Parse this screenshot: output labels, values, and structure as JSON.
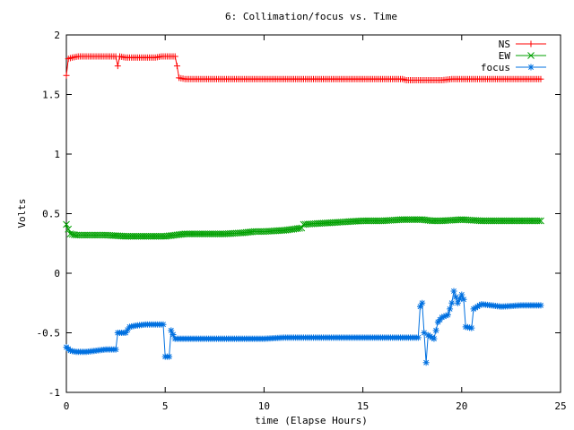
{
  "chart_data": {
    "type": "line",
    "title": "6: Collimation/focus vs. Time",
    "xlabel": "time (Elapse Hours)",
    "ylabel": "Volts",
    "xlim": [
      0,
      25
    ],
    "ylim": [
      -1,
      2
    ],
    "xticks": [
      0,
      5,
      10,
      15,
      20,
      25
    ],
    "yticks": [
      -1,
      -0.5,
      0,
      0.5,
      1,
      1.5,
      2
    ],
    "xtick_labels": [
      "0",
      "5",
      "10",
      "15",
      "20",
      "25"
    ],
    "ytick_labels": [
      "-1",
      "-0.5",
      "0",
      "0.5",
      "1",
      "1.5",
      "2"
    ],
    "grid": false,
    "legend_position": "top-right",
    "series": [
      {
        "name": "NS",
        "color": "#ff0000",
        "marker": "plus",
        "points": [
          [
            0,
            1.66
          ],
          [
            0.1,
            1.8
          ],
          [
            0.3,
            1.81
          ],
          [
            0.6,
            1.82
          ],
          [
            1,
            1.82
          ],
          [
            1.5,
            1.82
          ],
          [
            2,
            1.82
          ],
          [
            2.5,
            1.82
          ],
          [
            2.6,
            1.74
          ],
          [
            2.7,
            1.82
          ],
          [
            3,
            1.81
          ],
          [
            3.5,
            1.81
          ],
          [
            4,
            1.81
          ],
          [
            4.5,
            1.81
          ],
          [
            4.8,
            1.82
          ],
          [
            5.2,
            1.82
          ],
          [
            5.5,
            1.82
          ],
          [
            5.6,
            1.74
          ],
          [
            5.7,
            1.64
          ],
          [
            6,
            1.63
          ],
          [
            7,
            1.63
          ],
          [
            8,
            1.63
          ],
          [
            9,
            1.63
          ],
          [
            10,
            1.63
          ],
          [
            11,
            1.63
          ],
          [
            12,
            1.63
          ],
          [
            13,
            1.63
          ],
          [
            14,
            1.63
          ],
          [
            15,
            1.63
          ],
          [
            16,
            1.63
          ],
          [
            17,
            1.63
          ],
          [
            17.2,
            1.62
          ],
          [
            17.5,
            1.62
          ],
          [
            18,
            1.62
          ],
          [
            18.5,
            1.62
          ],
          [
            19,
            1.62
          ],
          [
            19.5,
            1.63
          ],
          [
            20,
            1.63
          ],
          [
            20.5,
            1.63
          ],
          [
            21,
            1.63
          ],
          [
            22,
            1.63
          ],
          [
            23,
            1.63
          ],
          [
            24,
            1.63
          ]
        ]
      },
      {
        "name": "EW",
        "color": "#00a000",
        "marker": "cross",
        "points": [
          [
            0,
            0.41
          ],
          [
            0.2,
            0.33
          ],
          [
            0.5,
            0.32
          ],
          [
            1,
            0.32
          ],
          [
            2,
            0.32
          ],
          [
            3,
            0.31
          ],
          [
            4,
            0.31
          ],
          [
            5,
            0.31
          ],
          [
            5.5,
            0.32
          ],
          [
            6,
            0.33
          ],
          [
            7,
            0.33
          ],
          [
            8,
            0.33
          ],
          [
            9,
            0.34
          ],
          [
            9.5,
            0.35
          ],
          [
            10,
            0.35
          ],
          [
            11,
            0.36
          ],
          [
            11.5,
            0.37
          ],
          [
            11.9,
            0.38
          ],
          [
            12,
            0.41
          ],
          [
            13,
            0.42
          ],
          [
            14,
            0.43
          ],
          [
            15,
            0.44
          ],
          [
            16,
            0.44
          ],
          [
            17,
            0.45
          ],
          [
            18,
            0.45
          ],
          [
            18.5,
            0.44
          ],
          [
            19,
            0.44
          ],
          [
            20,
            0.45
          ],
          [
            21,
            0.44
          ],
          [
            22,
            0.44
          ],
          [
            23,
            0.44
          ],
          [
            24,
            0.44
          ]
        ]
      },
      {
        "name": "focus",
        "color": "#0070e0",
        "marker": "star",
        "points": [
          [
            0,
            -0.62
          ],
          [
            0.2,
            -0.65
          ],
          [
            0.5,
            -0.66
          ],
          [
            1,
            -0.66
          ],
          [
            1.5,
            -0.65
          ],
          [
            2,
            -0.64
          ],
          [
            2.5,
            -0.64
          ],
          [
            2.6,
            -0.5
          ],
          [
            2.8,
            -0.5
          ],
          [
            3,
            -0.5
          ],
          [
            3.2,
            -0.45
          ],
          [
            3.5,
            -0.44
          ],
          [
            4,
            -0.43
          ],
          [
            4.5,
            -0.43
          ],
          [
            4.9,
            -0.43
          ],
          [
            5,
            -0.7
          ],
          [
            5.2,
            -0.7
          ],
          [
            5.3,
            -0.48
          ],
          [
            5.5,
            -0.55
          ],
          [
            6,
            -0.55
          ],
          [
            7,
            -0.55
          ],
          [
            8,
            -0.55
          ],
          [
            9,
            -0.55
          ],
          [
            10,
            -0.55
          ],
          [
            11,
            -0.54
          ],
          [
            12,
            -0.54
          ],
          [
            13,
            -0.54
          ],
          [
            14,
            -0.54
          ],
          [
            15,
            -0.54
          ],
          [
            16,
            -0.54
          ],
          [
            17,
            -0.54
          ],
          [
            17.8,
            -0.54
          ],
          [
            17.9,
            -0.28
          ],
          [
            18,
            -0.25
          ],
          [
            18.2,
            -0.75
          ],
          [
            18.3,
            -0.52
          ],
          [
            18.6,
            -0.55
          ],
          [
            18.8,
            -0.41
          ],
          [
            19,
            -0.37
          ],
          [
            19.3,
            -0.35
          ],
          [
            19.5,
            -0.25
          ],
          [
            19.6,
            -0.15
          ],
          [
            19.8,
            -0.25
          ],
          [
            20,
            -0.18
          ],
          [
            20.1,
            -0.22
          ],
          [
            20.2,
            -0.45
          ],
          [
            20.5,
            -0.46
          ],
          [
            20.6,
            -0.3
          ],
          [
            20.8,
            -0.28
          ],
          [
            21,
            -0.26
          ],
          [
            22,
            -0.28
          ],
          [
            23,
            -0.27
          ],
          [
            24,
            -0.27
          ]
        ]
      }
    ]
  }
}
